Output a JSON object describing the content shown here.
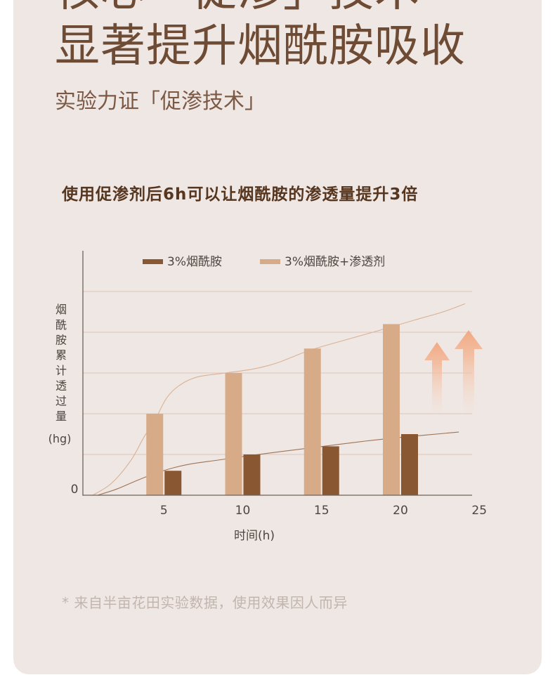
{
  "headline": {
    "line1": "核心「促渗」技术",
    "line2": "显著提升烟酰胺吸收"
  },
  "subtitle": "实验力证「促渗技术」",
  "chart_data": {
    "type": "bar",
    "title": "使用促渗剂后6h可以让烟酰胺的渗透量提升3倍",
    "x": [
      5,
      10,
      15,
      20
    ],
    "x_ticks": [
      "5",
      "10",
      "15",
      "20",
      "25"
    ],
    "xlim": [
      0,
      25
    ],
    "xlabel": "时间(h)",
    "ylabel": "烟酰胺累计透过量",
    "yunit": "(hg)",
    "y_tick_labels": [
      "0"
    ],
    "ylim": [
      0,
      6
    ],
    "y_gridlines": [
      1,
      2,
      3,
      4,
      5
    ],
    "grid": true,
    "legend_position": "top",
    "series": [
      {
        "name": "3%烟酰胺",
        "color": "#8a5733",
        "values": [
          0.6,
          1.0,
          1.2,
          1.5
        ],
        "trend_color": "#9e7357",
        "trend": [
          [
            0.8,
            0
          ],
          [
            2.0,
            0.15
          ],
          [
            3.1,
            0.33
          ],
          [
            4.2,
            0.5
          ],
          [
            5.3,
            0.64
          ],
          [
            6.6,
            0.76
          ],
          [
            8.4,
            0.86
          ],
          [
            10.0,
            0.95
          ],
          [
            12.4,
            1.07
          ],
          [
            15.1,
            1.2
          ],
          [
            17.8,
            1.33
          ],
          [
            20.0,
            1.42
          ],
          [
            23.7,
            1.55
          ]
        ]
      },
      {
        "name": "3%烟酰胺+渗透剂",
        "color": "#d8ab88",
        "values": [
          2.0,
          3.0,
          3.6,
          4.2
        ],
        "trend_color": "#dab194",
        "trend": [
          [
            0.5,
            0
          ],
          [
            1.7,
            0.3
          ],
          [
            2.9,
            0.85
          ],
          [
            3.7,
            1.4
          ],
          [
            4.5,
            1.9
          ],
          [
            5.2,
            2.4
          ],
          [
            6.0,
            2.7
          ],
          [
            7.1,
            2.9
          ],
          [
            8.9,
            3.0
          ],
          [
            10.7,
            3.1
          ],
          [
            12.2,
            3.25
          ],
          [
            14.2,
            3.55
          ],
          [
            16.4,
            3.8
          ],
          [
            18.7,
            4.05
          ],
          [
            20.9,
            4.3
          ],
          [
            22.7,
            4.5
          ],
          [
            24.1,
            4.7
          ]
        ]
      }
    ]
  },
  "footnote": "* 来自半亩花田实验数据，使用效果因人而异",
  "colors": {
    "card_background": "#efe7e3",
    "headline": "#6d4b34",
    "subtitle": "#7b5945",
    "chart_title": "#56361f",
    "footnote": "#c2b5ae",
    "arrow": "#f1a982"
  },
  "icons": [
    "up-arrow-icon",
    "up-arrow-icon"
  ]
}
